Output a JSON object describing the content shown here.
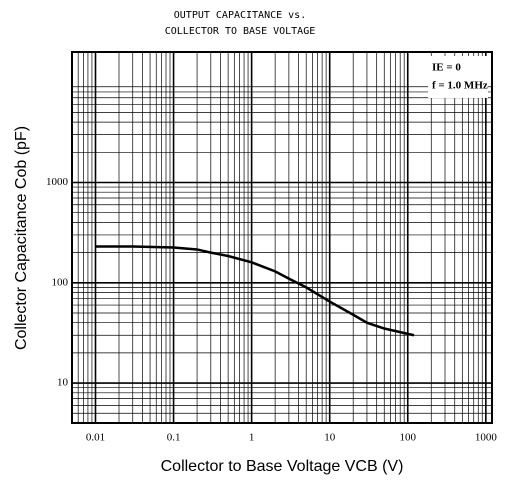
{
  "chart_data": {
    "type": "line",
    "title": [
      "OUTPUT CAPACITANCE vs.",
      "COLLECTOR TO BASE VOLTAGE"
    ],
    "x_label": "Collector to Base Voltage  VCB  (V)",
    "y_label": "Collector Capacitance  Cob  (pF)",
    "annotations": [
      "IE = 0",
      "f = 1.0 MHz"
    ],
    "x": [
      0.01,
      0.03,
      0.1,
      0.2,
      0.3,
      0.5,
      1,
      2,
      3,
      5,
      10,
      20,
      30,
      50,
      120
    ],
    "series": [
      {
        "name": "Cob",
        "color": "#000000",
        "values": [
          230,
          230,
          225,
          215,
          200,
          185,
          160,
          130,
          110,
          90,
          65,
          48,
          40,
          35,
          30
        ]
      }
    ],
    "xlim": [
      0.005,
      1200
    ],
    "ylim": [
      4,
      20000
    ],
    "xticks": [
      0.01,
      0.1,
      1,
      10,
      100,
      1000
    ],
    "yticks": [
      10,
      100,
      1000
    ],
    "xlog": true,
    "ylog": true,
    "grid": true
  }
}
